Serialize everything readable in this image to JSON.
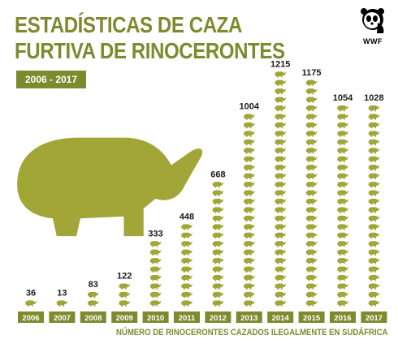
{
  "header": {
    "title_line1": "ESTADÍSTICAS DE CAZA",
    "title_line2": "FURTIVA DE RINOCERONTES",
    "period": "2006 - 2017"
  },
  "logo": {
    "text": "WWF"
  },
  "footnote": "NÚMERO DE RINOCERONTES CAZADOS ILEGALMENTE EN SUDÁFRICA",
  "colors": {
    "olive": "#7d8a2e",
    "rhino": "#a1a637",
    "background": "#ffffff"
  },
  "chart_data": {
    "type": "bar",
    "categories": [
      "2006",
      "2007",
      "2008",
      "2009",
      "2010",
      "2011",
      "2012",
      "2013",
      "2014",
      "2015",
      "2016",
      "2017"
    ],
    "values": [
      36,
      13,
      83,
      122,
      333,
      448,
      668,
      1004,
      1215,
      1175,
      1054,
      1028
    ],
    "title": "ESTADÍSTICAS DE CAZA FURTIVA DE RINOCERONTES",
    "subtitle": "2006 - 2017",
    "xlabel": "NÚMERO DE RINOCERONTES CAZADOS ILEGALMENTE EN SUDÁFRICA",
    "ylabel": "",
    "ylim": [
      0,
      1215
    ],
    "grid": false,
    "data_labels": true,
    "mark": "rhino-icon"
  }
}
